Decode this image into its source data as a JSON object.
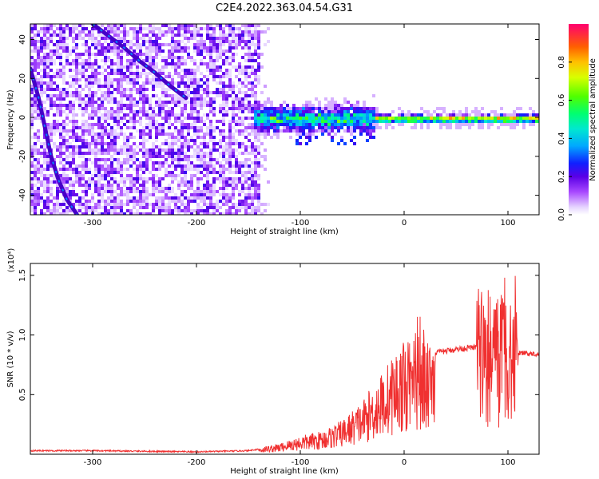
{
  "title": "C2E4.2022.363.04.54.G31",
  "chart_data": [
    {
      "type": "heatmap",
      "xlabel": "Height of straight line (km)",
      "ylabel": "Frequency (Hz)",
      "xlim": [
        -360,
        130
      ],
      "ylim": [
        -50,
        48
      ],
      "xticks": [
        -300,
        -200,
        -100,
        0,
        100
      ],
      "yticks": [
        -40,
        -20,
        0,
        20,
        40
      ],
      "colorbar": {
        "label": "Normalized spectral amplitude",
        "range": [
          0,
          1
        ],
        "ticks": [
          0.0,
          0.2,
          0.4,
          0.6,
          0.8
        ],
        "colors": [
          "#ffffff",
          "#e0c8ff",
          "#a040ff",
          "#6000e0",
          "#0020ff",
          "#00c0ff",
          "#00ff90",
          "#40ff00",
          "#d0ff00",
          "#ffc000",
          "#ff6000",
          "#ff0060"
        ]
      },
      "features": {
        "noise_region_x": [
          -360,
          -140
        ],
        "signal_band_x": [
          -140,
          130
        ],
        "signal_band_center_hz": 0,
        "tone_arc_upper": [
          [
            -300,
            48
          ],
          [
            -285,
            42
          ],
          [
            -270,
            36
          ],
          [
            -255,
            29
          ],
          [
            -240,
            23
          ],
          [
            -225,
            16
          ],
          [
            -210,
            10
          ]
        ],
        "tone_arc_lower": [
          [
            -360,
            25
          ],
          [
            -352,
            10
          ],
          [
            -346,
            -5
          ],
          [
            -340,
            -20
          ],
          [
            -333,
            -32
          ],
          [
            -325,
            -42
          ],
          [
            -315,
            -50
          ]
        ]
      }
    },
    {
      "type": "line",
      "xlabel": "Height of straight line (km)",
      "ylabel": "SNR (10 * v/v)",
      "multiplier_label": "(x10⁴)",
      "xlim": [
        -360,
        130
      ],
      "ylim": [
        0,
        1.6
      ],
      "xticks": [
        -300,
        -200,
        -100,
        0,
        100
      ],
      "yticks": [
        0.5,
        1.0,
        1.5
      ],
      "color": "#f03030",
      "envelope": [
        [
          -360,
          0.03
        ],
        [
          -300,
          0.03
        ],
        [
          -200,
          0.02
        ],
        [
          -150,
          0.03
        ],
        [
          -120,
          0.07
        ],
        [
          -100,
          0.12
        ],
        [
          -80,
          0.15
        ],
        [
          -60,
          0.22
        ],
        [
          -40,
          0.35
        ],
        [
          -20,
          0.55
        ],
        [
          -5,
          0.7
        ],
        [
          10,
          0.78
        ],
        [
          30,
          0.85
        ],
        [
          50,
          0.88
        ],
        [
          70,
          0.9
        ],
        [
          85,
          0.95
        ],
        [
          100,
          0.88
        ],
        [
          110,
          0.85
        ],
        [
          130,
          0.84
        ]
      ]
    }
  ]
}
